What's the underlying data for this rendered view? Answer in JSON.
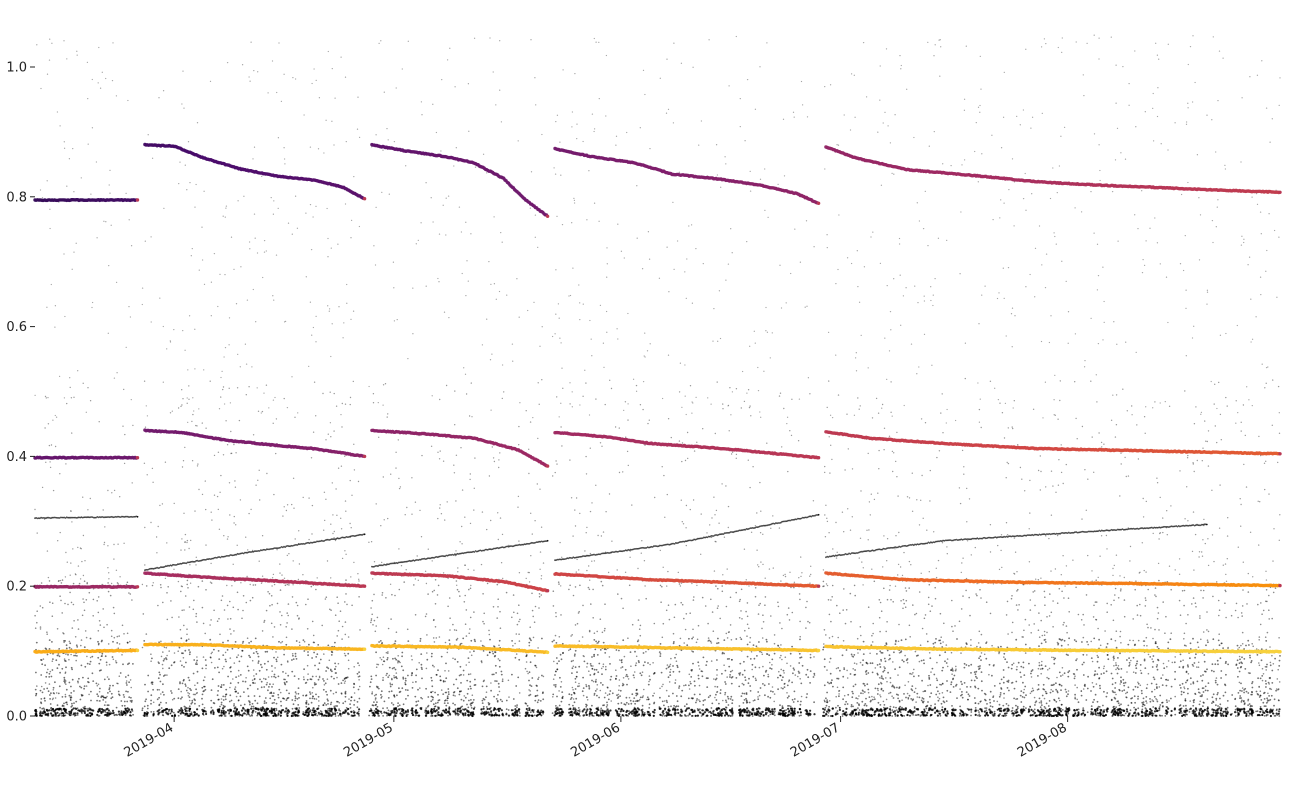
{
  "chart_data": {
    "type": "scatter",
    "title": "",
    "xlabel": "",
    "ylabel": "",
    "x_axis": "date",
    "xlim": [
      "2019-03-13",
      "2019-08-30"
    ],
    "ylim": [
      0.0,
      1.05
    ],
    "grid": false,
    "legend": "none",
    "background": "#ffffff",
    "y_ticks": [
      {
        "value": 0.0,
        "label": "0.0"
      },
      {
        "value": 0.2,
        "label": "0.2"
      },
      {
        "value": 0.4,
        "label": "0.4"
      },
      {
        "value": 0.6,
        "label": "0.6"
      },
      {
        "value": 0.8,
        "label": "0.8"
      },
      {
        "value": 1.0,
        "label": "1.0"
      }
    ],
    "x_ticks": [
      {
        "value": "2019-04-01",
        "label": "2019-04"
      },
      {
        "value": "2019-05-01",
        "label": "2019-05"
      },
      {
        "value": "2019-06-01",
        "label": "2019-06"
      },
      {
        "value": "2019-07-01",
        "label": "2019-07"
      },
      {
        "value": "2019-08-01",
        "label": "2019-08"
      }
    ],
    "colormap": [
      "#1b0c41",
      "#4a0c6b",
      "#781c6d",
      "#a52c60",
      "#cf4446",
      "#ed6925",
      "#fb9b06",
      "#f7d13d"
    ],
    "background_series": {
      "marker_color": "#000000",
      "description_key": "noise"
    },
    "segment_breaks": [
      "2019-03-27",
      "2019-04-27",
      "2019-05-22",
      "2019-06-28"
    ],
    "series": [
      {
        "values": [
          [
            "2019-03-13",
            0.795
          ],
          [
            "2019-03-27",
            0.795
          ],
          [
            "2019-03-28",
            0.88
          ],
          [
            "2019-04-01",
            0.878
          ],
          [
            "2019-04-05",
            0.86
          ],
          [
            "2019-04-10",
            0.843
          ],
          [
            "2019-04-15",
            0.832
          ],
          [
            "2019-04-20",
            0.826
          ],
          [
            "2019-04-24",
            0.815
          ],
          [
            "2019-04-27",
            0.797
          ],
          [
            "2019-04-28",
            0.88
          ],
          [
            "2019-05-03",
            0.87
          ],
          [
            "2019-05-08",
            0.862
          ],
          [
            "2019-05-12",
            0.852
          ],
          [
            "2019-05-16",
            0.828
          ],
          [
            "2019-05-19",
            0.795
          ],
          [
            "2019-05-22",
            0.77
          ],
          [
            "2019-05-23",
            0.874
          ],
          [
            "2019-05-28",
            0.862
          ],
          [
            "2019-06-03",
            0.852
          ],
          [
            "2019-06-08",
            0.835
          ],
          [
            "2019-06-14",
            0.828
          ],
          [
            "2019-06-20",
            0.818
          ],
          [
            "2019-06-25",
            0.805
          ],
          [
            "2019-06-28",
            0.79
          ],
          [
            "2019-06-29",
            0.877
          ],
          [
            "2019-07-03",
            0.86
          ],
          [
            "2019-07-10",
            0.842
          ],
          [
            "2019-07-20",
            0.832
          ],
          [
            "2019-07-28",
            0.823
          ],
          [
            "2019-08-05",
            0.818
          ],
          [
            "2019-08-12",
            0.815
          ],
          [
            "2019-08-20",
            0.811
          ],
          [
            "2019-08-30",
            0.807
          ]
        ]
      },
      {
        "values": [
          [
            "2019-03-13",
            0.398
          ],
          [
            "2019-03-27",
            0.398
          ],
          [
            "2019-03-28",
            0.44
          ],
          [
            "2019-04-02",
            0.437
          ],
          [
            "2019-04-08",
            0.425
          ],
          [
            "2019-04-14",
            0.418
          ],
          [
            "2019-04-20",
            0.412
          ],
          [
            "2019-04-27",
            0.4
          ],
          [
            "2019-04-28",
            0.44
          ],
          [
            "2019-05-05",
            0.435
          ],
          [
            "2019-05-12",
            0.428
          ],
          [
            "2019-05-18",
            0.41
          ],
          [
            "2019-05-22",
            0.385
          ],
          [
            "2019-05-23",
            0.437
          ],
          [
            "2019-05-30",
            0.43
          ],
          [
            "2019-06-05",
            0.42
          ],
          [
            "2019-06-15",
            0.412
          ],
          [
            "2019-06-28",
            0.398
          ],
          [
            "2019-06-29",
            0.438
          ],
          [
            "2019-07-05",
            0.428
          ],
          [
            "2019-07-15",
            0.42
          ],
          [
            "2019-07-28",
            0.412
          ],
          [
            "2019-08-10",
            0.409
          ],
          [
            "2019-08-30",
            0.404
          ]
        ]
      },
      {
        "values": [
          [
            "2019-03-13",
            0.199
          ],
          [
            "2019-03-27",
            0.199
          ],
          [
            "2019-03-28",
            0.22
          ],
          [
            "2019-04-05",
            0.214
          ],
          [
            "2019-04-15",
            0.208
          ],
          [
            "2019-04-27",
            0.2
          ],
          [
            "2019-04-28",
            0.22
          ],
          [
            "2019-05-08",
            0.216
          ],
          [
            "2019-05-16",
            0.207
          ],
          [
            "2019-05-22",
            0.193
          ],
          [
            "2019-05-23",
            0.219
          ],
          [
            "2019-06-05",
            0.21
          ],
          [
            "2019-06-15",
            0.206
          ],
          [
            "2019-06-28",
            0.2
          ],
          [
            "2019-06-29",
            0.22
          ],
          [
            "2019-07-10",
            0.21
          ],
          [
            "2019-07-25",
            0.206
          ],
          [
            "2019-08-10",
            0.204
          ],
          [
            "2019-08-30",
            0.201
          ]
        ]
      },
      {
        "values": [
          [
            "2019-03-13",
            0.099
          ],
          [
            "2019-03-27",
            0.101
          ],
          [
            "2019-03-28",
            0.11
          ],
          [
            "2019-04-05",
            0.11
          ],
          [
            "2019-04-15",
            0.105
          ],
          [
            "2019-04-27",
            0.103
          ],
          [
            "2019-04-28",
            0.108
          ],
          [
            "2019-05-10",
            0.106
          ],
          [
            "2019-05-18",
            0.101
          ],
          [
            "2019-05-22",
            0.098
          ],
          [
            "2019-05-23",
            0.108
          ],
          [
            "2019-06-08",
            0.105
          ],
          [
            "2019-06-28",
            0.101
          ],
          [
            "2019-06-29",
            0.107
          ],
          [
            "2019-07-15",
            0.103
          ],
          [
            "2019-08-05",
            0.101
          ],
          [
            "2019-08-30",
            0.099
          ]
        ]
      },
      {
        "values": [
          [
            "2019-03-13",
            0.305
          ],
          [
            "2019-03-27",
            0.307
          ],
          [
            "2019-03-28",
            0.225
          ],
          [
            "2019-04-10",
            0.25
          ],
          [
            "2019-04-27",
            0.28
          ],
          [
            "2019-04-28",
            0.23
          ],
          [
            "2019-05-10",
            0.25
          ],
          [
            "2019-05-22",
            0.27
          ],
          [
            "2019-05-23",
            0.24
          ],
          [
            "2019-06-08",
            0.265
          ],
          [
            "2019-06-28",
            0.31
          ],
          [
            "2019-06-29",
            0.245
          ],
          [
            "2019-07-15",
            0.27
          ],
          [
            "2019-08-05",
            0.285
          ],
          [
            "2019-08-20",
            0.295
          ]
        ]
      }
    ]
  }
}
